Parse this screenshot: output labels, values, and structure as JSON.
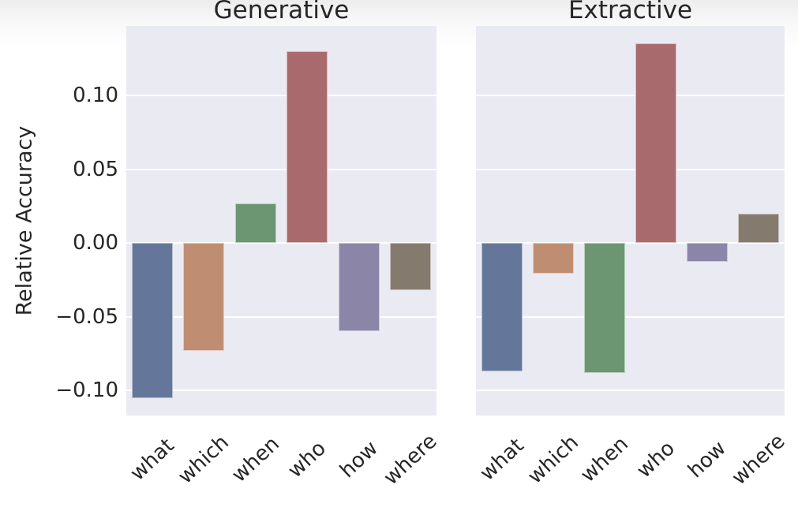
{
  "figure": {
    "ylabel": "Relative Accuracy",
    "plot_bg": "#eaeaf2",
    "grid_color": "#ffffff",
    "text_color": "#262626",
    "bar_colors": [
      "#64779b",
      "#bf8e72",
      "#6b9671",
      "#a96a6e",
      "#8b85a8",
      "#857a6e"
    ]
  },
  "chart_data": [
    {
      "type": "bar",
      "title": "Generative",
      "categories": [
        "what",
        "which",
        "when",
        "who",
        "how",
        "where"
      ],
      "values": [
        -0.105,
        -0.073,
        0.027,
        0.13,
        -0.06,
        -0.032
      ],
      "xlabel": "",
      "ylabel": "Relative Accuracy",
      "ylim": [
        -0.117,
        0.147
      ],
      "yticks": [
        0.1,
        0.05,
        0.0,
        -0.05,
        -0.1
      ],
      "ytick_labels": [
        "0.10",
        "0.05",
        "0.00",
        "−0.05",
        "−0.10"
      ],
      "grid": true,
      "legend": null
    },
    {
      "type": "bar",
      "title": "Extractive",
      "categories": [
        "what",
        "which",
        "when",
        "who",
        "how",
        "where"
      ],
      "values": [
        -0.087,
        -0.021,
        -0.088,
        0.135,
        -0.013,
        0.02
      ],
      "xlabel": "",
      "ylabel": "",
      "ylim": [
        -0.117,
        0.147
      ],
      "yticks": [
        0.1,
        0.05,
        0.0,
        -0.05,
        -0.1
      ],
      "ytick_labels": [
        "0.10",
        "0.05",
        "0.00",
        "−0.05",
        "−0.10"
      ],
      "grid": true,
      "legend": null
    }
  ]
}
